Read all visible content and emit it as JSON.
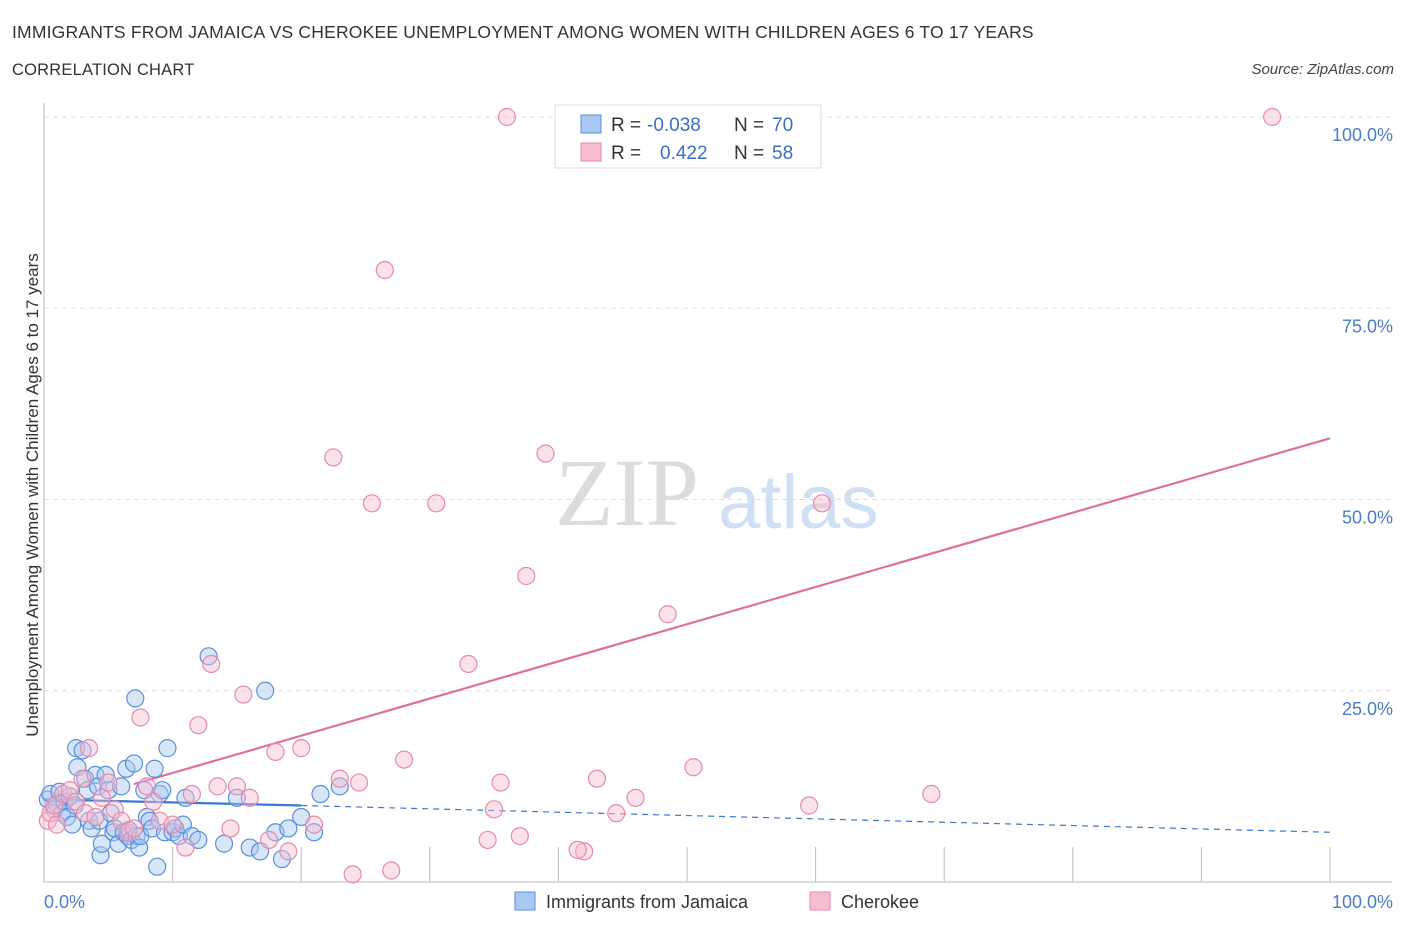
{
  "title": "IMMIGRANTS FROM JAMAICA VS CHEROKEE UNEMPLOYMENT AMONG WOMEN WITH CHILDREN AGES 6 TO 17 YEARS",
  "subtitle": "CORRELATION CHART",
  "source": "Source: ZipAtlas.com",
  "watermark": {
    "zip": "ZIP",
    "atlas": "atlas"
  },
  "colors": {
    "blue_fill": "#a9c8f2",
    "blue_stroke": "#5b8fd9",
    "blue_line": "#3a78d4",
    "pink_fill": "#f7bcd0",
    "pink_stroke": "#e58aab",
    "pink_line": "#e0709a",
    "tick_text": "#4a7cc9",
    "grid": "#dddddd"
  },
  "chart_data": {
    "type": "scatter",
    "xlabel": "",
    "ylabel": "Unemployment Among Women with Children Ages 6 to 17 years",
    "xlim": [
      0,
      100
    ],
    "ylim": [
      0,
      100
    ],
    "x_tick_labels": [
      "0.0%",
      "100.0%"
    ],
    "y_ticks": [
      25,
      50,
      75,
      100
    ],
    "y_tick_labels": [
      "25.0%",
      "50.0%",
      "75.0%",
      "100.0%"
    ],
    "grid": true,
    "legend_placement": "top-center",
    "stats": [
      {
        "r_label": "R =",
        "r": "-0.038",
        "n_label": "N =",
        "n": "70"
      },
      {
        "r_label": "R =",
        "r": "0.422",
        "n_label": "N =",
        "n": "58"
      }
    ],
    "series": [
      {
        "name": "Immigrants from Jamaica",
        "color": "blue",
        "points": [
          [
            0.3,
            10.8
          ],
          [
            0.5,
            11.5
          ],
          [
            0.8,
            9.5
          ],
          [
            1.0,
            10.2
          ],
          [
            1.2,
            11.8
          ],
          [
            1.4,
            9.0
          ],
          [
            1.6,
            10.5
          ],
          [
            1.8,
            8.5
          ],
          [
            2.0,
            11.2
          ],
          [
            2.2,
            7.5
          ],
          [
            2.4,
            10.0
          ],
          [
            2.5,
            17.5
          ],
          [
            2.6,
            15.0
          ],
          [
            3.0,
            17.2
          ],
          [
            3.2,
            13.5
          ],
          [
            3.4,
            12.0
          ],
          [
            3.5,
            8.0
          ],
          [
            3.7,
            7.0
          ],
          [
            4.0,
            14.0
          ],
          [
            4.2,
            12.5
          ],
          [
            4.3,
            8.0
          ],
          [
            4.4,
            3.5
          ],
          [
            4.5,
            5.0
          ],
          [
            4.8,
            14.0
          ],
          [
            5.0,
            12.0
          ],
          [
            5.2,
            9.0
          ],
          [
            5.4,
            6.5
          ],
          [
            5.5,
            7.0
          ],
          [
            5.8,
            5.0
          ],
          [
            6.0,
            12.5
          ],
          [
            6.2,
            6.5
          ],
          [
            6.4,
            14.8
          ],
          [
            6.5,
            6.0
          ],
          [
            6.6,
            6.8
          ],
          [
            6.8,
            5.5
          ],
          [
            7.0,
            15.5
          ],
          [
            7.1,
            24.0
          ],
          [
            7.2,
            6.0
          ],
          [
            7.4,
            4.5
          ],
          [
            7.5,
            6.0
          ],
          [
            7.8,
            12.0
          ],
          [
            8.0,
            8.5
          ],
          [
            8.2,
            8.0
          ],
          [
            8.4,
            7.0
          ],
          [
            8.6,
            14.8
          ],
          [
            8.8,
            2.0
          ],
          [
            9.0,
            11.5
          ],
          [
            9.2,
            12.0
          ],
          [
            9.4,
            6.5
          ],
          [
            9.6,
            17.5
          ],
          [
            10.0,
            6.5
          ],
          [
            10.2,
            7.0
          ],
          [
            10.5,
            6.0
          ],
          [
            10.8,
            7.5
          ],
          [
            11.0,
            11.0
          ],
          [
            11.5,
            6.0
          ],
          [
            12.0,
            5.5
          ],
          [
            12.8,
            29.5
          ],
          [
            14.0,
            5.0
          ],
          [
            15.0,
            11.0
          ],
          [
            16.0,
            4.5
          ],
          [
            16.8,
            4.0
          ],
          [
            17.2,
            25.0
          ],
          [
            18.0,
            6.5
          ],
          [
            18.5,
            3.0
          ],
          [
            19.0,
            7.0
          ],
          [
            20.0,
            8.5
          ],
          [
            21.0,
            6.5
          ],
          [
            21.5,
            11.5
          ],
          [
            23.0,
            12.5
          ]
        ],
        "trend": {
          "x": [
            0,
            20,
            100
          ],
          "y": [
            10.8,
            10.0,
            6.5
          ],
          "solid_until": 20
        }
      },
      {
        "name": "Cherokee",
        "color": "pink",
        "points": [
          [
            0.3,
            8.0
          ],
          [
            0.5,
            9.0
          ],
          [
            0.8,
            10.0
          ],
          [
            1.0,
            7.5
          ],
          [
            1.5,
            11.5
          ],
          [
            2.0,
            12.0
          ],
          [
            2.5,
            10.5
          ],
          [
            3.0,
            13.5
          ],
          [
            3.2,
            9.0
          ],
          [
            3.5,
            17.5
          ],
          [
            4.0,
            8.5
          ],
          [
            4.5,
            11.0
          ],
          [
            5.0,
            13.0
          ],
          [
            5.5,
            9.5
          ],
          [
            6.0,
            8.0
          ],
          [
            6.5,
            6.5
          ],
          [
            7.0,
            7.0
          ],
          [
            7.5,
            21.5
          ],
          [
            8.0,
            12.5
          ],
          [
            8.5,
            10.5
          ],
          [
            9.0,
            8.0
          ],
          [
            10.0,
            7.5
          ],
          [
            11.0,
            4.5
          ],
          [
            11.5,
            11.5
          ],
          [
            12.0,
            20.5
          ],
          [
            13.0,
            28.5
          ],
          [
            13.5,
            12.5
          ],
          [
            14.5,
            7.0
          ],
          [
            15.0,
            12.5
          ],
          [
            15.5,
            24.5
          ],
          [
            16.0,
            11.0
          ],
          [
            17.5,
            5.5
          ],
          [
            18.0,
            17.0
          ],
          [
            19.0,
            4.0
          ],
          [
            20.0,
            17.5
          ],
          [
            21.0,
            7.5
          ],
          [
            22.5,
            55.5
          ],
          [
            23.0,
            13.5
          ],
          [
            24.0,
            1.0
          ],
          [
            24.5,
            13.0
          ],
          [
            25.5,
            49.5
          ],
          [
            26.5,
            80.0
          ],
          [
            27.0,
            1.5
          ],
          [
            28.0,
            16.0
          ],
          [
            30.5,
            49.5
          ],
          [
            33.0,
            28.5
          ],
          [
            34.5,
            5.5
          ],
          [
            35.0,
            9.5
          ],
          [
            35.5,
            13.0
          ],
          [
            36.0,
            100.0
          ],
          [
            37.0,
            6.0
          ],
          [
            37.5,
            40.0
          ],
          [
            39.0,
            56.0
          ],
          [
            42.0,
            4.0
          ],
          [
            43.0,
            13.5
          ],
          [
            44.5,
            9.0
          ],
          [
            46.0,
            11.0
          ],
          [
            60.5,
            49.5
          ]
        ],
        "extra_points": [
          [
            41.5,
            4.2
          ],
          [
            59.5,
            10.0
          ],
          [
            69.0,
            11.5
          ],
          [
            95.5,
            100.0
          ],
          [
            48.5,
            35.0
          ],
          [
            50.5,
            15.0
          ]
        ],
        "trend": {
          "x": [
            7,
            100
          ],
          "y": [
            12.8,
            58.0
          ]
        }
      }
    ]
  },
  "legend_bottom": [
    {
      "label": "Immigrants from Jamaica",
      "color": "blue"
    },
    {
      "label": "Cherokee",
      "color": "pink"
    }
  ]
}
